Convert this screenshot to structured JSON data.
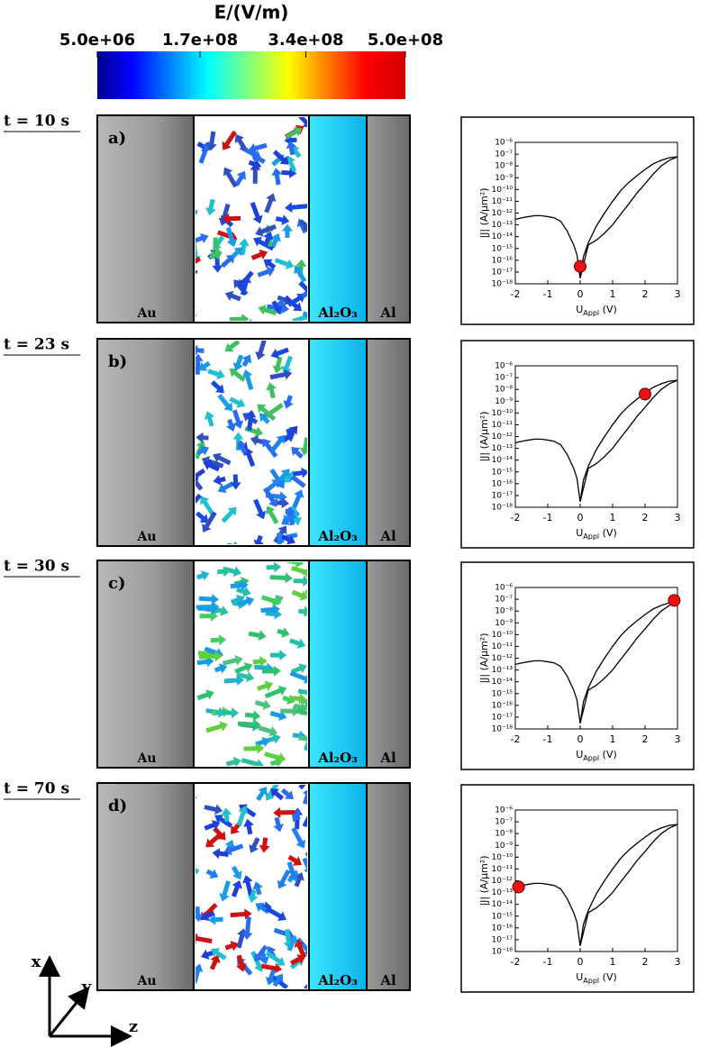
{
  "colorbar": {
    "title": "E/(V/m)",
    "lim": [
      5000000,
      500000000
    ],
    "ticks": [
      {
        "value": 5000000,
        "label": "5.0e+06"
      },
      {
        "value": 170000000,
        "label": "1.7e+08"
      },
      {
        "value": 340000000,
        "label": "3.4e+08"
      },
      {
        "value": 500000000,
        "label": "5.0e+08"
      }
    ]
  },
  "panels": [
    {
      "time": "t = 10 s",
      "label": "a)",
      "layers": [
        "Au",
        "Al₂O₃",
        "Al"
      ]
    },
    {
      "time": "t = 23 s",
      "label": "b)",
      "layers": [
        "Au",
        "Al₂O₃",
        "Al"
      ]
    },
    {
      "time": "t = 30 s",
      "label": "c)",
      "layers": [
        "Au",
        "Al₂O₃",
        "Al"
      ]
    },
    {
      "time": "t = 70 s",
      "label": "d)",
      "layers": [
        "Au",
        "Al₂O₃",
        "Al"
      ]
    }
  ],
  "axes_labels": [
    "x",
    "y",
    "z"
  ],
  "chart_data": [
    {
      "type": "line",
      "log_y": true,
      "x_label": {
        "main": "U",
        "sub": "Appl",
        "rest": " (V)"
      },
      "y_label": "|J| (A/μm²)",
      "xlim": [
        -2,
        3
      ],
      "xticks": [
        -2,
        -1,
        0,
        1,
        2,
        3
      ],
      "ylim": [
        1e-18,
        1e-06
      ],
      "yticks": [
        {
          "value": 1e-06,
          "label": "10⁻⁶"
        },
        {
          "value": 1e-07,
          "label": "10⁻⁷"
        },
        {
          "value": 1e-08,
          "label": "10⁻⁸"
        },
        {
          "value": 1e-09,
          "label": "10⁻⁹"
        },
        {
          "value": 1e-10,
          "label": "10⁻¹⁰"
        },
        {
          "value": 1e-11,
          "label": "10⁻¹¹"
        },
        {
          "value": 1e-12,
          "label": "10⁻¹²"
        },
        {
          "value": 1e-13,
          "label": "10⁻¹³"
        },
        {
          "value": 1e-14,
          "label": "10⁻¹⁴"
        },
        {
          "value": 1e-15,
          "label": "10⁻¹⁵"
        },
        {
          "value": 1e-16,
          "label": "10⁻¹⁶"
        },
        {
          "value": 1e-17,
          "label": "10⁻¹⁷"
        },
        {
          "value": 1e-18,
          "label": "10⁻¹⁸"
        }
      ],
      "x": [
        -2,
        -1.8,
        -1.6,
        -1.4,
        -1.2,
        -1,
        -0.8,
        -0.6,
        -0.4,
        -0.2,
        -0.1,
        0,
        0.25,
        0.5,
        0.75,
        1,
        1.25,
        1.5,
        1.75,
        2,
        2.25,
        2.5,
        2.75,
        3,
        2.75,
        2.5,
        2.25,
        2,
        1.75,
        1.5,
        1.25,
        1,
        0.75,
        0.5,
        0.25,
        0.1,
        0
      ],
      "series": [
        {
          "color": "#000000",
          "values": [
            3e-13,
            4e-13,
            5e-13,
            6e-13,
            6e-13,
            5e-13,
            4e-13,
            2e-13,
            3e-14,
            2e-15,
            3e-16,
            3e-18,
            2e-15,
            5e-15,
            2e-14,
            1e-13,
            8e-13,
            6e-12,
            5e-11,
            3e-10,
            2e-09,
            1e-08,
            3e-08,
            6e-08,
            5e-08,
            3e-08,
            1.5e-08,
            5e-09,
            1.5e-09,
            4e-10,
            8e-11,
            1e-11,
            1e-12,
            8e-14,
            3e-15,
            2e-16,
            3e-18
          ]
        }
      ],
      "marker": {
        "x": 0,
        "y": 3e-17,
        "color": "#ee1111"
      }
    },
    {
      "type": "line",
      "log_y": true,
      "x_label": {
        "main": "U",
        "sub": "Appl",
        "rest": " (V)"
      },
      "y_label": "|J| (A/μm²)",
      "xlim": [
        -2,
        3
      ],
      "xticks": [
        -2,
        -1,
        0,
        1,
        2,
        3
      ],
      "ylim": [
        1e-18,
        1e-06
      ],
      "yticks": [
        {
          "value": 1e-06,
          "label": "10⁻⁶"
        },
        {
          "value": 1e-07,
          "label": "10⁻⁷"
        },
        {
          "value": 1e-08,
          "label": "10⁻⁸"
        },
        {
          "value": 1e-09,
          "label": "10⁻⁹"
        },
        {
          "value": 1e-10,
          "label": "10⁻¹⁰"
        },
        {
          "value": 1e-11,
          "label": "10⁻¹¹"
        },
        {
          "value": 1e-12,
          "label": "10⁻¹²"
        },
        {
          "value": 1e-13,
          "label": "10⁻¹³"
        },
        {
          "value": 1e-14,
          "label": "10⁻¹⁴"
        },
        {
          "value": 1e-15,
          "label": "10⁻¹⁵"
        },
        {
          "value": 1e-16,
          "label": "10⁻¹⁶"
        },
        {
          "value": 1e-17,
          "label": "10⁻¹⁷"
        },
        {
          "value": 1e-18,
          "label": "10⁻¹⁸"
        }
      ],
      "x": [
        -2,
        -1.8,
        -1.6,
        -1.4,
        -1.2,
        -1,
        -0.8,
        -0.6,
        -0.4,
        -0.2,
        -0.1,
        0,
        0.25,
        0.5,
        0.75,
        1,
        1.25,
        1.5,
        1.75,
        2,
        2.25,
        2.5,
        2.75,
        3,
        2.75,
        2.5,
        2.25,
        2,
        1.75,
        1.5,
        1.25,
        1,
        0.75,
        0.5,
        0.25,
        0.1,
        0
      ],
      "series": [
        {
          "color": "#000000",
          "values": [
            3e-13,
            4e-13,
            5e-13,
            6e-13,
            6e-13,
            5e-13,
            4e-13,
            2e-13,
            3e-14,
            2e-15,
            3e-16,
            3e-18,
            2e-15,
            5e-15,
            2e-14,
            1e-13,
            8e-13,
            6e-12,
            5e-11,
            3e-10,
            2e-09,
            1e-08,
            3e-08,
            6e-08,
            5e-08,
            3e-08,
            1.5e-08,
            5e-09,
            1.5e-09,
            4e-10,
            8e-11,
            1e-11,
            1e-12,
            8e-14,
            3e-15,
            2e-16,
            3e-18
          ]
        }
      ],
      "marker": {
        "x": 2,
        "y": 4e-09,
        "color": "#ee1111"
      }
    },
    {
      "type": "line",
      "log_y": true,
      "x_label": {
        "main": "U",
        "sub": "Appl",
        "rest": " (V)"
      },
      "y_label": "|J| (A/μm²)",
      "xlim": [
        -2,
        3
      ],
      "xticks": [
        -2,
        -1,
        0,
        1,
        2,
        3
      ],
      "ylim": [
        1e-18,
        1e-06
      ],
      "yticks": [
        {
          "value": 1e-06,
          "label": "10⁻⁶"
        },
        {
          "value": 1e-07,
          "label": "10⁻⁷"
        },
        {
          "value": 1e-08,
          "label": "10⁻⁸"
        },
        {
          "value": 1e-09,
          "label": "10⁻⁹"
        },
        {
          "value": 1e-10,
          "label": "10⁻¹⁰"
        },
        {
          "value": 1e-11,
          "label": "10⁻¹¹"
        },
        {
          "value": 1e-12,
          "label": "10⁻¹²"
        },
        {
          "value": 1e-13,
          "label": "10⁻¹³"
        },
        {
          "value": 1e-14,
          "label": "10⁻¹⁴"
        },
        {
          "value": 1e-15,
          "label": "10⁻¹⁵"
        },
        {
          "value": 1e-16,
          "label": "10⁻¹⁶"
        },
        {
          "value": 1e-17,
          "label": "10⁻¹⁷"
        },
        {
          "value": 1e-18,
          "label": "10⁻¹⁸"
        }
      ],
      "x": [
        -2,
        -1.8,
        -1.6,
        -1.4,
        -1.2,
        -1,
        -0.8,
        -0.6,
        -0.4,
        -0.2,
        -0.1,
        0,
        0.25,
        0.5,
        0.75,
        1,
        1.25,
        1.5,
        1.75,
        2,
        2.25,
        2.5,
        2.75,
        3,
        2.75,
        2.5,
        2.25,
        2,
        1.75,
        1.5,
        1.25,
        1,
        0.75,
        0.5,
        0.25,
        0.1,
        0
      ],
      "series": [
        {
          "color": "#000000",
          "values": [
            3e-13,
            4e-13,
            5e-13,
            6e-13,
            6e-13,
            5e-13,
            4e-13,
            2e-13,
            3e-14,
            2e-15,
            3e-16,
            3e-18,
            2e-15,
            5e-15,
            2e-14,
            1e-13,
            8e-13,
            6e-12,
            5e-11,
            3e-10,
            2e-09,
            1e-08,
            3e-08,
            6e-08,
            5e-08,
            3e-08,
            1.5e-08,
            5e-09,
            1.5e-09,
            4e-10,
            8e-11,
            1e-11,
            1e-12,
            8e-14,
            3e-15,
            2e-16,
            3e-18
          ]
        }
      ],
      "marker": {
        "x": 2.9,
        "y": 8e-08,
        "color": "#ee1111"
      }
    },
    {
      "type": "line",
      "log_y": true,
      "x_label": {
        "main": "U",
        "sub": "Appl",
        "rest": " (V)"
      },
      "y_label": "|J| (A/μm²)",
      "xlim": [
        -2,
        3
      ],
      "xticks": [
        -2,
        -1,
        0,
        1,
        2,
        3
      ],
      "ylim": [
        1e-18,
        1e-06
      ],
      "yticks": [
        {
          "value": 1e-06,
          "label": "10⁻⁶"
        },
        {
          "value": 1e-07,
          "label": "10⁻⁷"
        },
        {
          "value": 1e-08,
          "label": "10⁻⁸"
        },
        {
          "value": 1e-09,
          "label": "10⁻⁹"
        },
        {
          "value": 1e-10,
          "label": "10⁻¹⁰"
        },
        {
          "value": 1e-11,
          "label": "10⁻¹¹"
        },
        {
          "value": 1e-12,
          "label": "10⁻¹²"
        },
        {
          "value": 1e-13,
          "label": "10⁻¹³"
        },
        {
          "value": 1e-14,
          "label": "10⁻¹⁴"
        },
        {
          "value": 1e-15,
          "label": "10⁻¹⁵"
        },
        {
          "value": 1e-16,
          "label": "10⁻¹⁶"
        },
        {
          "value": 1e-17,
          "label": "10⁻¹⁷"
        },
        {
          "value": 1e-18,
          "label": "10⁻¹⁸"
        }
      ],
      "x": [
        -2,
        -1.8,
        -1.6,
        -1.4,
        -1.2,
        -1,
        -0.8,
        -0.6,
        -0.4,
        -0.2,
        -0.1,
        0,
        0.25,
        0.5,
        0.75,
        1,
        1.25,
        1.5,
        1.75,
        2,
        2.25,
        2.5,
        2.75,
        3,
        2.75,
        2.5,
        2.25,
        2,
        1.75,
        1.5,
        1.25,
        1,
        0.75,
        0.5,
        0.25,
        0.1,
        0
      ],
      "series": [
        {
          "color": "#000000",
          "values": [
            3e-13,
            4e-13,
            5e-13,
            6e-13,
            6e-13,
            5e-13,
            4e-13,
            2e-13,
            3e-14,
            2e-15,
            3e-16,
            3e-18,
            2e-15,
            5e-15,
            2e-14,
            1e-13,
            8e-13,
            6e-12,
            5e-11,
            3e-10,
            2e-09,
            1e-08,
            3e-08,
            6e-08,
            5e-08,
            3e-08,
            1.5e-08,
            5e-09,
            1.5e-09,
            4e-10,
            8e-11,
            1e-11,
            1e-12,
            8e-14,
            3e-15,
            2e-16,
            3e-18
          ]
        }
      ],
      "marker": {
        "x": -1.9,
        "y": 3e-13,
        "color": "#ee1111"
      }
    }
  ]
}
